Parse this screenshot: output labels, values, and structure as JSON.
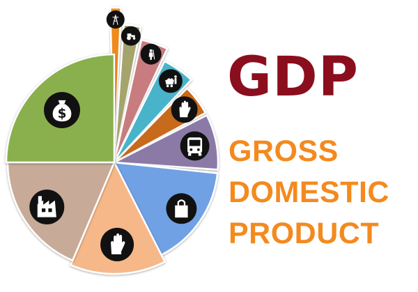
{
  "colors": {
    "title": "#8b0e1e",
    "subtitle": "#f38a1f",
    "icon_disc": "#111111",
    "icon_glyph": "#ffffff"
  },
  "heading": {
    "title": "GDP",
    "lines": [
      "GROSS",
      "DOMESTIC",
      "PRODUCT"
    ]
  },
  "pie": {
    "segments": [
      {
        "name": "energy",
        "color": "#f08a1c",
        "icon": "power-tower-icon"
      },
      {
        "name": "agriculture-machinery",
        "color": "#a5a46c",
        "icon": "tractor-icon"
      },
      {
        "name": "farming",
        "color": "#c97c7f",
        "icon": "farmer-icon"
      },
      {
        "name": "mining",
        "color": "#4ab3c9",
        "icon": "mine-cart-icon"
      },
      {
        "name": "services-a",
        "color": "#c76a1e",
        "icon": "hand-icon"
      },
      {
        "name": "transport",
        "color": "#8c7aa6",
        "icon": "bus-icon"
      },
      {
        "name": "retail",
        "color": "#6fa1e4",
        "icon": "shopping-bag-icon"
      },
      {
        "name": "services-b",
        "color": "#f6b889",
        "icon": "hand-icon"
      },
      {
        "name": "industry",
        "color": "#c8aa98",
        "icon": "factory-icon"
      },
      {
        "name": "finance",
        "color": "#8ab04d",
        "icon": "money-bag-icon"
      }
    ]
  }
}
